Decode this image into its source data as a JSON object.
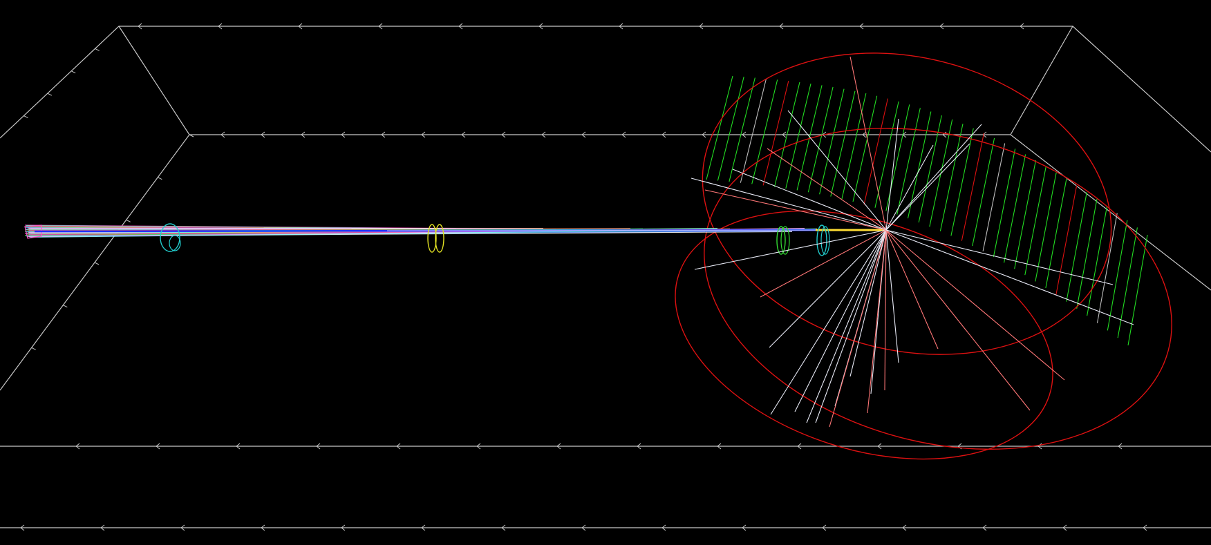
{
  "viewer": {
    "background": "#000000",
    "colors": {
      "world_box": "#d0d0d0",
      "detector_outline": "#e01010",
      "detector_slats": "#22dd22",
      "beam_primary": "#2233ff",
      "spray_white": "#e8eaf6",
      "spray_red": "#ff7777",
      "ring_cyan": "#22cccc",
      "ring_yellow": "#dddd22",
      "ring_green": "#33dd33",
      "target_glow": "#ffdd33"
    },
    "objects": [
      {
        "name": "world-volume-box",
        "kind": "wireframe"
      },
      {
        "name": "particle-beam",
        "kind": "trajectory-bundle"
      },
      {
        "name": "beam-ring",
        "kind": "ring",
        "color": "cyan"
      },
      {
        "name": "beam-ring",
        "kind": "ring",
        "color": "yellow"
      },
      {
        "name": "beam-ring",
        "kind": "ring",
        "color": "green"
      },
      {
        "name": "beam-ring",
        "kind": "ring",
        "color": "cyan"
      },
      {
        "name": "cylindrical-detector",
        "kind": "wireframe-cylinder"
      },
      {
        "name": "secondary-tracks",
        "kind": "trajectory-spray"
      }
    ]
  }
}
